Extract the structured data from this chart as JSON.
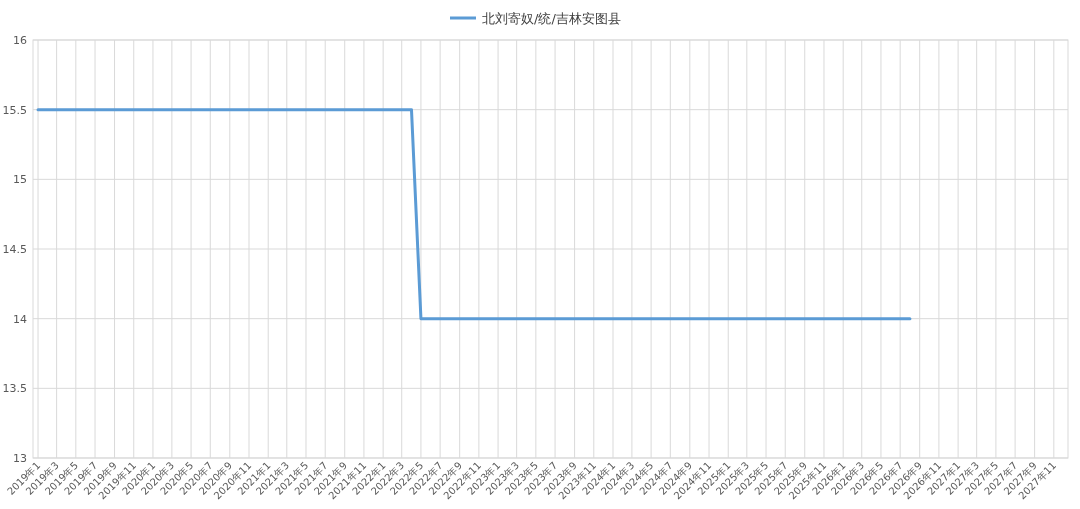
{
  "chart_data": {
    "type": "line",
    "legend": "top",
    "grid": true,
    "marker": "none",
    "line_style": "solid",
    "x": [
      "2019-01",
      "2022-04",
      "2022-05",
      "2026-08"
    ],
    "series": [
      {
        "name": "北刘寄奴/统/吉林安图县",
        "color": "#5b9bd5",
        "values": [
          15.5,
          15.5,
          14,
          14
        ]
      }
    ],
    "xlim": [
      "2018-12-16",
      "2027-12-16"
    ],
    "xticks": [
      {
        "value": "2019-01",
        "label": "2019年1"
      },
      {
        "value": "2019-03",
        "label": "2019年3"
      },
      {
        "value": "2019-05",
        "label": "2019年5"
      },
      {
        "value": "2019-07",
        "label": "2019年7"
      },
      {
        "value": "2019-09",
        "label": "2019年9"
      },
      {
        "value": "2019-11",
        "label": "2019年11"
      },
      {
        "value": "2020-01",
        "label": "2020年1"
      },
      {
        "value": "2020-03",
        "label": "2020年3"
      },
      {
        "value": "2020-05",
        "label": "2020年5"
      },
      {
        "value": "2020-07",
        "label": "2020年7"
      },
      {
        "value": "2020-09",
        "label": "2020年9"
      },
      {
        "value": "2020-11",
        "label": "2020年11"
      },
      {
        "value": "2021-01",
        "label": "2021年1"
      },
      {
        "value": "2021-03",
        "label": "2021年3"
      },
      {
        "value": "2021-05",
        "label": "2021年5"
      },
      {
        "value": "2021-07",
        "label": "2021年7"
      },
      {
        "value": "2021-09",
        "label": "2021年9"
      },
      {
        "value": "2021-11",
        "label": "2021年11"
      },
      {
        "value": "2022-01",
        "label": "2022年1"
      },
      {
        "value": "2022-03",
        "label": "2022年3"
      },
      {
        "value": "2022-05",
        "label": "2022年5"
      },
      {
        "value": "2022-07",
        "label": "2022年7"
      },
      {
        "value": "2022-09",
        "label": "2022年9"
      },
      {
        "value": "2022-11",
        "label": "2022年11"
      },
      {
        "value": "2023-01",
        "label": "2023年1"
      },
      {
        "value": "2023-03",
        "label": "2023年3"
      },
      {
        "value": "2023-05",
        "label": "2023年5"
      },
      {
        "value": "2023-07",
        "label": "2023年7"
      },
      {
        "value": "2023-09",
        "label": "2023年9"
      },
      {
        "value": "2023-11",
        "label": "2023年11"
      },
      {
        "value": "2024-01",
        "label": "2024年1"
      },
      {
        "value": "2024-03",
        "label": "2024年3"
      },
      {
        "value": "2024-05",
        "label": "2024年5"
      },
      {
        "value": "2024-07",
        "label": "2024年7"
      },
      {
        "value": "2024-09",
        "label": "2024年9"
      },
      {
        "value": "2024-11",
        "label": "2024年11"
      },
      {
        "value": "2025-01",
        "label": "2025年1"
      },
      {
        "value": "2025-03",
        "label": "2025年3"
      },
      {
        "value": "2025-05",
        "label": "2025年5"
      },
      {
        "value": "2025-07",
        "label": "2025年7"
      },
      {
        "value": "2025-09",
        "label": "2025年9"
      },
      {
        "value": "2025-11",
        "label": "2025年11"
      },
      {
        "value": "2026-01",
        "label": "2026年1"
      },
      {
        "value": "2026-03",
        "label": "2026年3"
      },
      {
        "value": "2026-05",
        "label": "2026年5"
      },
      {
        "value": "2026-07",
        "label": "2026年7"
      },
      {
        "value": "2026-09",
        "label": "2026年9"
      },
      {
        "value": "2026-11",
        "label": "2026年11"
      },
      {
        "value": "2027-01",
        "label": "2027年1"
      },
      {
        "value": "2027-03",
        "label": "2027年3"
      },
      {
        "value": "2027-05",
        "label": "2027年5"
      },
      {
        "value": "2027-07",
        "label": "2027年7"
      },
      {
        "value": "2027-09",
        "label": "2027年9"
      },
      {
        "value": "2027-11",
        "label": "2027年11"
      }
    ],
    "ylim": [
      13,
      16
    ],
    "yticks": [
      13,
      13.5,
      14,
      14.5,
      15,
      15.5,
      16
    ]
  }
}
